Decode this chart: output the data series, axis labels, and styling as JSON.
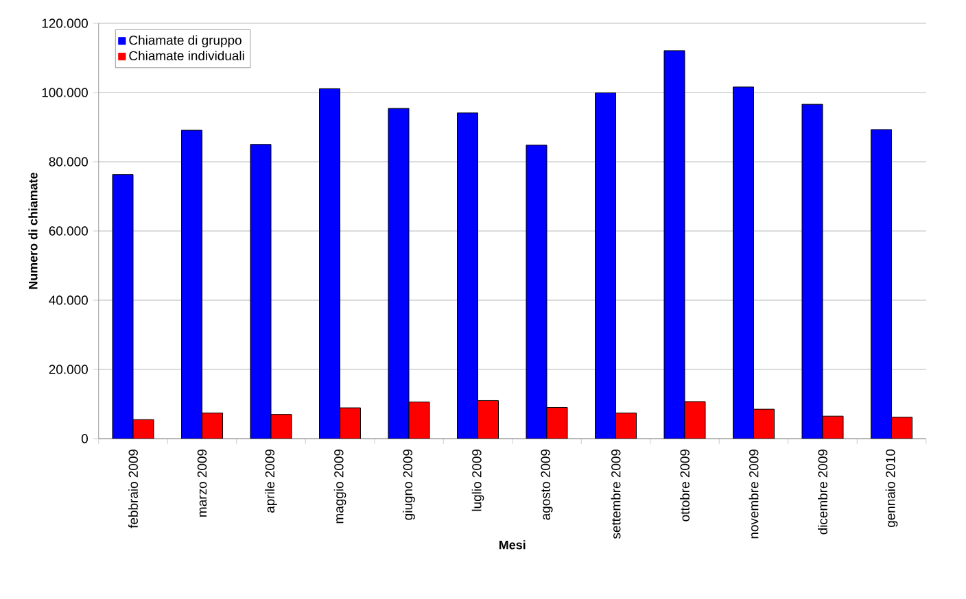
{
  "chart_data": {
    "type": "bar",
    "xlabel": "Mesi",
    "ylabel": "Numero di chiamate",
    "categories": [
      "febbraio 2009",
      "marzo 2009",
      "aprile 2009",
      "maggio 2009",
      "giugno 2009",
      "luglio 2009",
      "agosto 2009",
      "settembre 2009",
      "ottobre 2009",
      "novembre 2009",
      "dicembre 2009",
      "gennaio 2010"
    ],
    "series": [
      {
        "name": "Chiamate di gruppo",
        "color": "#0000ff",
        "values": [
          76300,
          89100,
          85000,
          101100,
          95400,
          94100,
          84800,
          99900,
          112100,
          101600,
          96600,
          89300
        ]
      },
      {
        "name": "Chiamate individuali",
        "color": "#ff0000",
        "values": [
          5500,
          7400,
          7000,
          8900,
          10600,
          11000,
          9000,
          7400,
          10700,
          8500,
          6500,
          6200
        ]
      }
    ],
    "ylim": [
      0,
      120000
    ],
    "yticks": [
      0,
      {
        "value": 20000,
        "label": "20.000"
      },
      {
        "value": 40000,
        "label": "40.000"
      },
      {
        "value": 60000,
        "label": "60.000"
      },
      {
        "value": 80000,
        "label": "80.000"
      },
      {
        "value": 100000,
        "label": "100.000"
      },
      {
        "value": 120000,
        "label": "120.000"
      }
    ],
    "grid": "y",
    "legend": "top left"
  }
}
